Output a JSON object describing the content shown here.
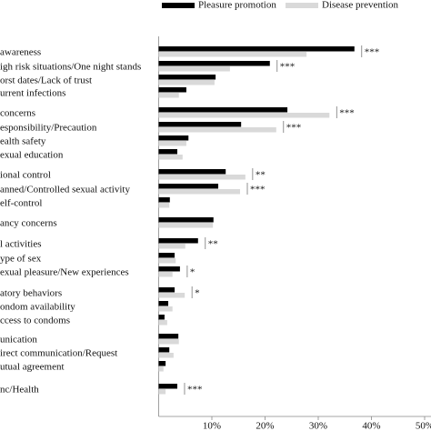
{
  "chart_data": {
    "type": "hbar",
    "categories": [
      "awareness",
      "igh risk situations/One night stands",
      "orst dates/Lack of trust",
      "urrent infections",
      "concerns",
      "esponsibility/Precaution",
      "ealth safety",
      "exual education",
      "ional control",
      "anned/Controlled sexual activity",
      "elf-control",
      "ancy concerns",
      "l activities",
      "ype of sex",
      "exual pleasure/New experiences",
      "atory behaviors",
      "ondom availability",
      "ccess to condoms",
      "unication",
      "irect communication/Request",
      "utual agreement",
      "nc/Health"
    ],
    "series": [
      {
        "name": "Pleasure promotion",
        "color": "#000000",
        "values": [
          36.8,
          20.9,
          10.7,
          5.2,
          24.2,
          15.5,
          5.6,
          3.5,
          12.6,
          11.2,
          2.1,
          10.3,
          7.4,
          3.0,
          4.0,
          3.0,
          1.8,
          1.1,
          3.7,
          2.0,
          1.3,
          3.5
        ]
      },
      {
        "name": "Disease prevention",
        "color": "#d9d9d9",
        "values": [
          27.8,
          13.4,
          10.5,
          3.8,
          32.1,
          22.1,
          5.2,
          4.5,
          16.3,
          15.3,
          2.0,
          10.2,
          5.0,
          3.2,
          2.6,
          4.9,
          2.6,
          1.6,
          3.8,
          2.8,
          0.9,
          1.3
        ]
      }
    ],
    "annotations": [
      "***",
      "***",
      null,
      null,
      "***",
      "***",
      null,
      null,
      "**",
      "***",
      null,
      null,
      "**",
      null,
      "*",
      "*",
      null,
      null,
      null,
      null,
      null,
      "***"
    ],
    "xlim": [
      0,
      50
    ],
    "xticks": [
      {
        "value": 10,
        "label": "10%"
      },
      {
        "value": 20,
        "label": "20%"
      },
      {
        "value": 30,
        "label": "30%"
      },
      {
        "value": 40,
        "label": "40%"
      },
      {
        "value": 50,
        "label": "50%"
      }
    ]
  }
}
